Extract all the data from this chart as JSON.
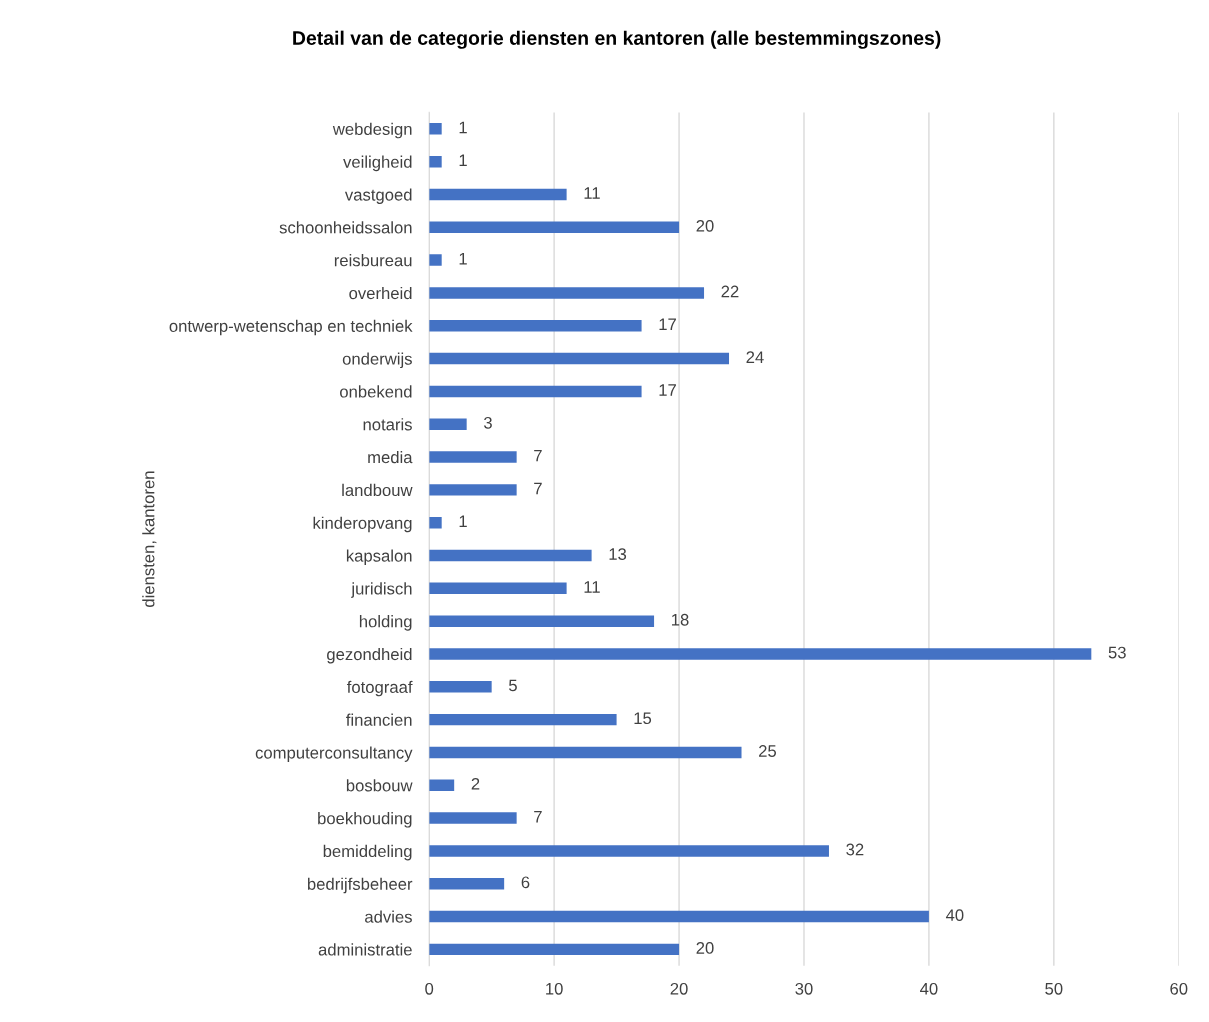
{
  "chart_data": {
    "type": "bar",
    "orientation": "horizontal",
    "title": "Detail van de categorie diensten en kantoren (alle bestemmingszones)",
    "ylabel": "diensten, kantoren",
    "categories": [
      "webdesign",
      "veiligheid",
      "vastgoed",
      "schoonheidssalon",
      "reisbureau",
      "overheid",
      "ontwerp-wetenschap en techniek",
      "onderwijs",
      "onbekend",
      "notaris",
      "media",
      "landbouw",
      "kinderopvang",
      "kapsalon",
      "juridisch",
      "holding",
      "gezondheid",
      "fotograaf",
      "financien",
      "computerconsultancy",
      "bosbouw",
      "boekhouding",
      "bemiddeling",
      "bedrijfsbeheer",
      "advies",
      "administratie"
    ],
    "values": [
      1,
      1,
      11,
      20,
      1,
      22,
      17,
      24,
      17,
      3,
      7,
      7,
      1,
      13,
      11,
      18,
      53,
      5,
      15,
      25,
      2,
      7,
      32,
      6,
      40,
      20
    ],
    "color": "#4472c4",
    "xlim": [
      0,
      60
    ],
    "xticks": [
      0,
      10,
      20,
      30,
      40,
      50,
      60
    ],
    "grid": "x",
    "data_labels": true,
    "legend": false
  }
}
